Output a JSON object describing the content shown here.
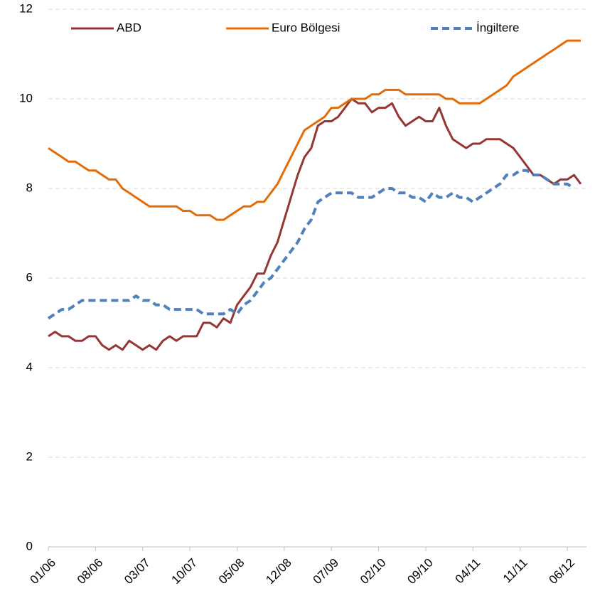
{
  "chart_data": {
    "type": "line",
    "categories": [
      "01/06",
      null,
      null,
      null,
      null,
      null,
      null,
      "08/06",
      null,
      null,
      null,
      null,
      null,
      null,
      "03/07",
      null,
      null,
      null,
      null,
      null,
      null,
      "10/07",
      null,
      null,
      null,
      null,
      null,
      null,
      "05/08",
      null,
      null,
      null,
      null,
      null,
      null,
      "12/08",
      null,
      null,
      null,
      null,
      null,
      null,
      "07/09",
      null,
      null,
      null,
      null,
      null,
      null,
      "02/10",
      null,
      null,
      null,
      null,
      null,
      null,
      "09/10",
      null,
      null,
      null,
      null,
      null,
      null,
      "04/11",
      null,
      null,
      null,
      null,
      null,
      null,
      "11/11",
      null,
      null,
      null,
      null,
      null,
      null,
      "06/12",
      null,
      null
    ],
    "series": [
      {
        "name": "ABD",
        "color": "#943634",
        "dash": false,
        "values": [
          4.7,
          4.8,
          4.7,
          4.7,
          4.6,
          4.6,
          4.7,
          4.7,
          4.5,
          4.4,
          4.5,
          4.4,
          4.6,
          4.5,
          4.4,
          4.5,
          4.4,
          4.6,
          4.7,
          4.6,
          4.7,
          4.7,
          4.7,
          5.0,
          5.0,
          4.9,
          5.1,
          5.0,
          5.4,
          5.6,
          5.8,
          6.1,
          6.1,
          6.5,
          6.8,
          7.3,
          7.8,
          8.3,
          8.7,
          8.9,
          9.4,
          9.5,
          9.5,
          9.6,
          9.8,
          10.0,
          9.9,
          9.9,
          9.7,
          9.8,
          9.8,
          9.9,
          9.6,
          9.4,
          9.5,
          9.6,
          9.5,
          9.5,
          9.8,
          9.4,
          9.1,
          9.0,
          8.9,
          9.0,
          9.0,
          9.1,
          9.1,
          9.1,
          9.0,
          8.9,
          8.7,
          8.5,
          8.3,
          8.3,
          8.2,
          8.1,
          8.2,
          8.2,
          8.3,
          8.1
        ]
      },
      {
        "name": "Euro Bölgesi",
        "color": "#e36c09",
        "dash": false,
        "values": [
          8.9,
          8.8,
          8.7,
          8.6,
          8.6,
          8.5,
          8.4,
          8.4,
          8.3,
          8.2,
          8.2,
          8.0,
          7.9,
          7.8,
          7.7,
          7.6,
          7.6,
          7.6,
          7.6,
          7.6,
          7.5,
          7.5,
          7.4,
          7.4,
          7.4,
          7.3,
          7.3,
          7.4,
          7.5,
          7.6,
          7.6,
          7.7,
          7.7,
          7.9,
          8.1,
          8.4,
          8.7,
          9.0,
          9.3,
          9.4,
          9.5,
          9.6,
          9.8,
          9.8,
          9.9,
          10.0,
          10.0,
          10.0,
          10.1,
          10.1,
          10.2,
          10.2,
          10.2,
          10.1,
          10.1,
          10.1,
          10.1,
          10.1,
          10.1,
          10.0,
          10.0,
          9.9,
          9.9,
          9.9,
          9.9,
          10.0,
          10.1,
          10.2,
          10.3,
          10.5,
          10.6,
          10.7,
          10.8,
          10.9,
          11.0,
          11.1,
          11.2,
          11.3,
          11.3,
          11.3
        ]
      },
      {
        "name": "İngiltere",
        "color": "#4f81bd",
        "dash": true,
        "values": [
          5.1,
          5.2,
          5.3,
          5.3,
          5.4,
          5.5,
          5.5,
          5.5,
          5.5,
          5.5,
          5.5,
          5.5,
          5.5,
          5.6,
          5.5,
          5.5,
          5.4,
          5.4,
          5.3,
          5.3,
          5.3,
          5.3,
          5.3,
          5.2,
          5.2,
          5.2,
          5.2,
          5.3,
          5.2,
          5.4,
          5.5,
          5.7,
          5.9,
          6.0,
          6.2,
          6.4,
          6.6,
          6.8,
          7.1,
          7.3,
          7.7,
          7.8,
          7.9,
          7.9,
          7.9,
          7.9,
          7.8,
          7.8,
          7.8,
          7.9,
          8.0,
          8.0,
          7.9,
          7.9,
          7.8,
          7.8,
          7.7,
          7.9,
          7.8,
          7.8,
          7.9,
          7.8,
          7.8,
          7.7,
          7.8,
          7.9,
          8.0,
          8.1,
          8.3,
          8.3,
          8.4,
          8.4,
          8.3,
          8.3,
          8.2,
          8.1,
          8.1,
          8.1,
          8.0,
          null
        ]
      }
    ],
    "ylim": [
      0,
      12
    ],
    "yticks": [
      0,
      2,
      4,
      6,
      8,
      10,
      12
    ],
    "grid": true,
    "legend": "top"
  }
}
